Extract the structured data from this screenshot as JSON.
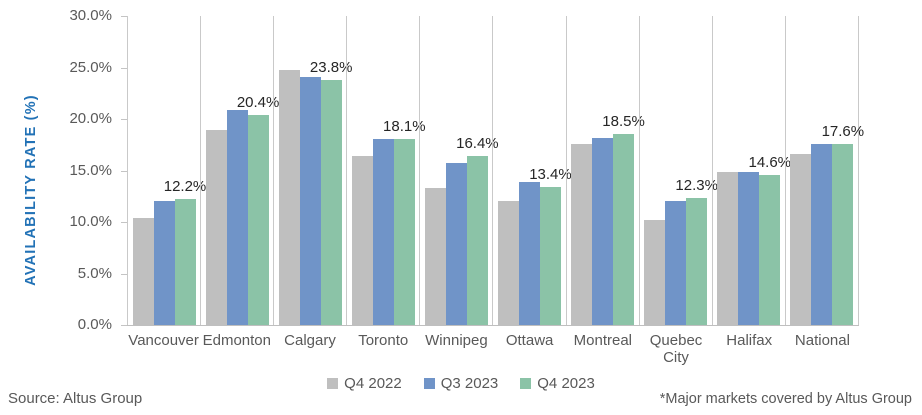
{
  "chart_data": {
    "type": "bar",
    "title": "",
    "ylabel": "AVAILABILITY RATE (%)",
    "xlabel": "",
    "ylim": [
      0,
      30
    ],
    "yticks": [
      "0.0%",
      "5.0%",
      "10.0%",
      "15.0%",
      "20.0%",
      "25.0%",
      "30.0%"
    ],
    "grid": "vertical category separators, light gray",
    "legend_position": "bottom-center",
    "categories": [
      "Vancouver",
      "Edmonton",
      "Calgary",
      "Toronto",
      "Winnipeg",
      "Ottawa",
      "Montreal",
      "Quebec City",
      "Halifax",
      "National"
    ],
    "series": [
      {
        "name": "Q4 2022",
        "color": "#BFBFBF",
        "values": [
          10.4,
          18.9,
          24.8,
          16.4,
          13.3,
          12.0,
          17.6,
          10.2,
          14.9,
          16.6
        ]
      },
      {
        "name": "Q3 2023",
        "color": "#7094C8",
        "values": [
          12.0,
          20.9,
          24.1,
          18.1,
          15.7,
          13.9,
          18.2,
          12.0,
          14.9,
          17.6
        ]
      },
      {
        "name": "Q4 2023",
        "color": "#8BC3A7",
        "values": [
          12.2,
          20.4,
          23.8,
          18.1,
          16.4,
          13.4,
          18.5,
          12.3,
          14.6,
          17.6
        ],
        "labels": [
          "12.2%",
          "20.4%",
          "23.8%",
          "18.1%",
          "16.4%",
          "13.4%",
          "18.5%",
          "12.3%",
          "14.6%",
          "17.6%"
        ]
      }
    ],
    "colors": {
      "axis_text": "#595959",
      "ylabel_text": "#2272B6",
      "gridline": "#C9C9C9",
      "value_label_text": "#262626"
    }
  },
  "footer": {
    "source": "Source: Altus Group",
    "note": "*Major markets covered by Altus Group"
  }
}
